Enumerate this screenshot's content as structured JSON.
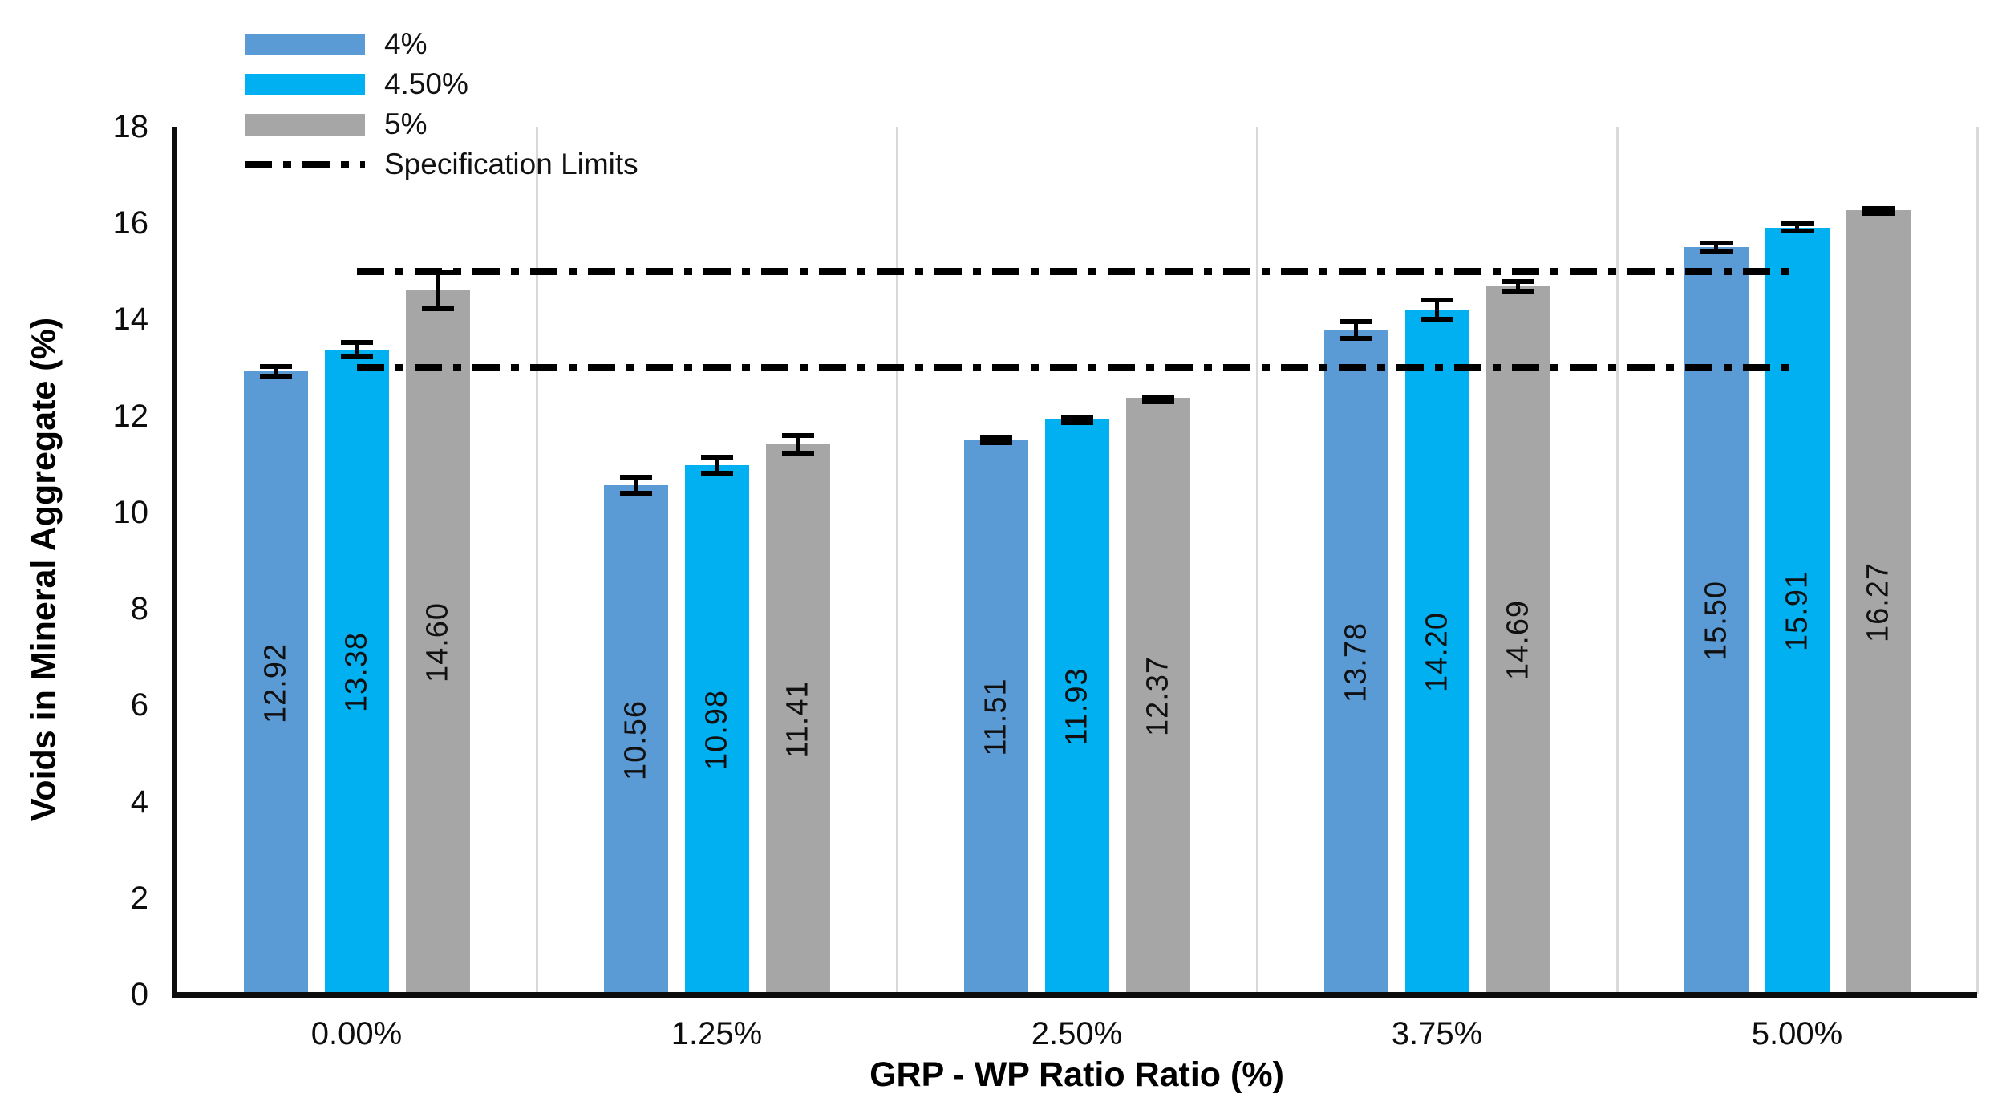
{
  "chart_data": {
    "type": "bar",
    "title": "",
    "xlabel": "GRP - WP Ratio Ratio (%)",
    "ylabel": "Voids in Mineral Aggregate (%)",
    "categories": [
      "0.00%",
      "1.25%",
      "2.50%",
      "3.75%",
      "5.00%"
    ],
    "series": [
      {
        "name": "4%",
        "color": "#5B9BD5",
        "values": [
          12.92,
          10.56,
          11.51,
          13.78,
          15.5
        ],
        "errors": [
          0.15,
          0.22,
          0.08,
          0.22,
          0.14
        ]
      },
      {
        "name": "4.50%",
        "color": "#00B0F0",
        "values": [
          13.38,
          10.98,
          11.93,
          14.2,
          15.91
        ],
        "errors": [
          0.2,
          0.22,
          0.08,
          0.25,
          0.13
        ]
      },
      {
        "name": "5%",
        "color": "#A6A6A6",
        "values": [
          14.6,
          11.41,
          12.37,
          14.69,
          16.27
        ],
        "errors": [
          0.42,
          0.23,
          0.08,
          0.15,
          0.08
        ]
      }
    ],
    "spec_limits": {
      "name": "Specification Limits",
      "values": [
        15,
        13
      ],
      "color": "#000000"
    },
    "ylim": [
      0,
      18
    ],
    "yticks": [
      0,
      2,
      4,
      6,
      8,
      10,
      12,
      14,
      16,
      18
    ],
    "value_label_decimals": 2,
    "legend_position": "top-left",
    "grid": "vertical-category-separators",
    "axis_color": "#0d0d0d",
    "gridline_color": "#d9d9d9"
  }
}
